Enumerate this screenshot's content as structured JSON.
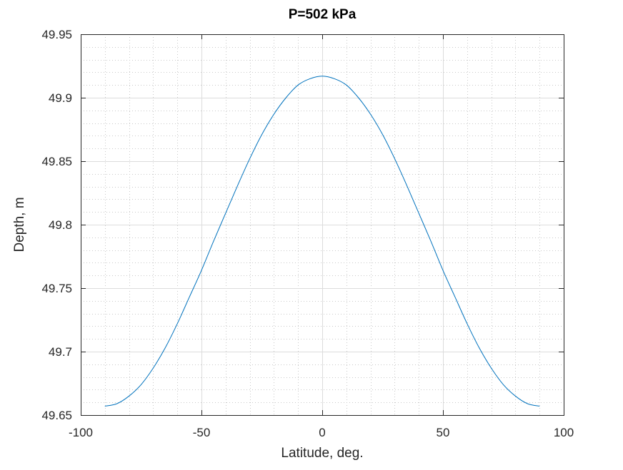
{
  "chart_data": {
    "type": "line",
    "title": "P=502 kPa",
    "xlabel": "Latitude, deg.",
    "ylabel": "Depth, m",
    "xlim": [
      -100,
      100
    ],
    "ylim": [
      49.65,
      49.95
    ],
    "xticks": [
      -100,
      -50,
      0,
      50,
      100
    ],
    "yticks": [
      49.65,
      49.7,
      49.75,
      49.8,
      49.85,
      49.9,
      49.95
    ],
    "xtick_labels": [
      "-100",
      "-50",
      "0",
      "50",
      "100"
    ],
    "ytick_labels": [
      "49.65",
      "49.7",
      "49.75",
      "49.8",
      "49.85",
      "49.9",
      "49.95"
    ],
    "grid": true,
    "minor_grid": true,
    "series": [
      {
        "color": "#0072bd",
        "x": [
          -90,
          -85,
          -80,
          -75,
          -70,
          -65,
          -60,
          -55,
          -50,
          -45,
          -40,
          -35,
          -30,
          -25,
          -20,
          -15,
          -10,
          -5,
          0,
          5,
          10,
          15,
          20,
          25,
          30,
          35,
          40,
          45,
          50,
          55,
          60,
          65,
          70,
          75,
          80,
          85,
          90
        ],
        "y": [
          49.657,
          49.659,
          49.665,
          49.674,
          49.687,
          49.703,
          49.722,
          49.743,
          49.764,
          49.787,
          49.809,
          49.831,
          49.852,
          49.871,
          49.887,
          49.9,
          49.91,
          49.915,
          49.917,
          49.915,
          49.91,
          49.9,
          49.887,
          49.871,
          49.852,
          49.831,
          49.809,
          49.787,
          49.764,
          49.743,
          49.722,
          49.703,
          49.687,
          49.674,
          49.665,
          49.659,
          49.657
        ]
      }
    ]
  }
}
